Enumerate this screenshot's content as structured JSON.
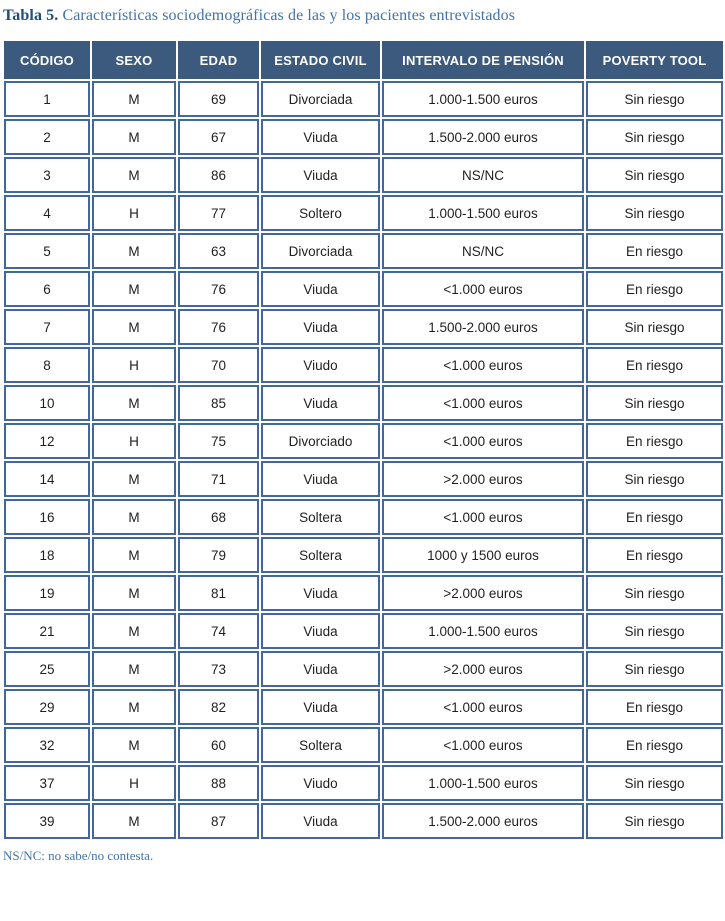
{
  "caption": {
    "label": "Tabla 5.",
    "text": " Características sociodemográficas de las y los pacientes entrevistados"
  },
  "table": {
    "columns": [
      "CÓDIGO",
      "SEXO",
      "EDAD",
      "ESTADO CIVIL",
      "INTERVALO DE PENSIÓN",
      "POVERTY TOOL"
    ],
    "rows": [
      [
        "1",
        "M",
        "69",
        "Divorciada",
        "1.000-1.500 euros",
        "Sin riesgo"
      ],
      [
        "2",
        "M",
        "67",
        "Viuda",
        "1.500-2.000 euros",
        "Sin riesgo"
      ],
      [
        "3",
        "M",
        "86",
        "Viuda",
        "NS/NC",
        "Sin riesgo"
      ],
      [
        "4",
        "H",
        "77",
        "Soltero",
        "1.000-1.500 euros",
        "Sin riesgo"
      ],
      [
        "5",
        "M",
        "63",
        "Divorciada",
        "NS/NC",
        "En riesgo"
      ],
      [
        "6",
        "M",
        "76",
        "Viuda",
        "<1.000 euros",
        "En riesgo"
      ],
      [
        "7",
        "M",
        "76",
        "Viuda",
        "1.500-2.000 euros",
        "Sin riesgo"
      ],
      [
        "8",
        "H",
        "70",
        "Viudo",
        "<1.000 euros",
        "En riesgo"
      ],
      [
        "10",
        "M",
        "85",
        "Viuda",
        "<1.000 euros",
        "Sin riesgo"
      ],
      [
        "12",
        "H",
        "75",
        "Divorciado",
        "<1.000 euros",
        "En riesgo"
      ],
      [
        "14",
        "M",
        "71",
        "Viuda",
        ">2.000 euros",
        "Sin riesgo"
      ],
      [
        "16",
        "M",
        "68",
        "Soltera",
        "<1.000 euros",
        "En riesgo"
      ],
      [
        "18",
        "M",
        "79",
        "Soltera",
        "1000 y 1500 euros",
        "En riesgo"
      ],
      [
        "19",
        "M",
        "81",
        "Viuda",
        ">2.000 euros",
        "Sin riesgo"
      ],
      [
        "21",
        "M",
        "74",
        "Viuda",
        "1.000-1.500 euros",
        "Sin riesgo"
      ],
      [
        "25",
        "M",
        "73",
        "Viuda",
        ">2.000 euros",
        "Sin riesgo"
      ],
      [
        "29",
        "M",
        "82",
        "Viuda",
        "<1.000 euros",
        "En riesgo"
      ],
      [
        "32",
        "M",
        "60",
        "Soltera",
        "<1.000 euros",
        "En riesgo"
      ],
      [
        "37",
        "H",
        "88",
        "Viudo",
        "1.000-1.500 euros",
        "Sin riesgo"
      ],
      [
        "39",
        "M",
        "87",
        "Viuda",
        "1.500-2.000 euros",
        "Sin riesgo"
      ]
    ]
  },
  "footnote": "NS/NC: no sabe/no contesta.",
  "colors": {
    "header_background": "#3c5a7e",
    "header_text": "#ffffff",
    "cell_border": "#40689c",
    "caption_label": "#1f4e79",
    "caption_text": "#4273a8",
    "footnote_text": "#4273a8",
    "body_text": "#1f1f1f"
  }
}
